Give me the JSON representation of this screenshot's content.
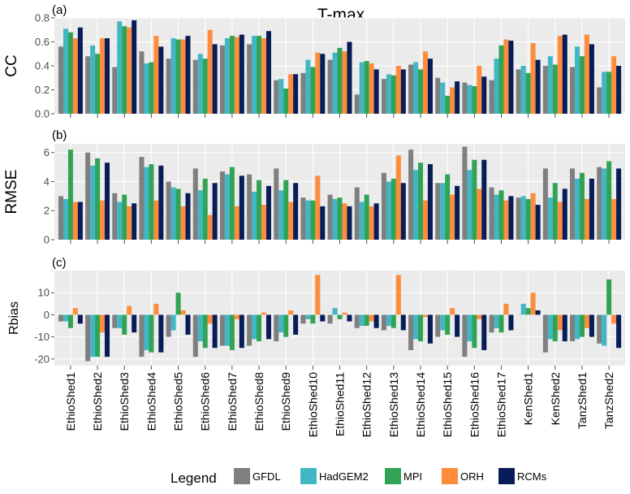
{
  "chart_data": {
    "type": "bar",
    "title": "T-max",
    "categories": [
      "EthioShed1",
      "EthioShed2",
      "EthioShed3",
      "EthioShed4",
      "EthioShed5",
      "EthioShed6",
      "EthioShed7",
      "EthioShed8",
      "EthioShed9",
      "EthioShed10",
      "EthioShed11",
      "EthioShed12",
      "EthioShed13",
      "EthioShed14",
      "EthioShed15",
      "EthioShed16",
      "EthioShed17",
      "KenShed1",
      "KenShed2",
      "TanzShed1",
      "TanzShed2"
    ],
    "series_names": [
      "GFDL",
      "HadGEM2",
      "MPI",
      "ORH",
      "RCMs"
    ],
    "colors": {
      "GFDL": "#7f7f7f",
      "HadGEM2": "#41b6c4",
      "MPI": "#31a354",
      "ORH": "#fd8d3c",
      "RCMs": "#081d58"
    },
    "legend": {
      "title": "Legend",
      "position": "bottom"
    },
    "panels": [
      {
        "tag": "(a)",
        "ylabel": "CC",
        "ylim": [
          0,
          0.8
        ],
        "yticks": [
          0.0,
          0.2,
          0.4,
          0.6,
          0.8
        ],
        "ytick_labels": [
          "0.0",
          "0.2",
          "0.4",
          "0.6",
          "0.8"
        ],
        "series": [
          {
            "name": "GFDL",
            "values": [
              0.56,
              0.48,
              0.39,
              0.52,
              0.46,
              0.45,
              0.57,
              0.58,
              0.28,
              0.34,
              0.45,
              0.16,
              0.29,
              0.41,
              0.3,
              0.26,
              0.28,
              0.37,
              0.4,
              0.39,
              0.22
            ]
          },
          {
            "name": "HadGEM2",
            "values": [
              0.71,
              0.57,
              0.77,
              0.42,
              0.63,
              0.5,
              0.63,
              0.65,
              0.29,
              0.45,
              0.51,
              0.43,
              0.33,
              0.43,
              0.26,
              0.24,
              0.46,
              0.4,
              0.48,
              0.56,
              0.35
            ]
          },
          {
            "name": "MPI",
            "values": [
              0.68,
              0.5,
              0.73,
              0.43,
              0.62,
              0.46,
              0.65,
              0.65,
              0.21,
              0.39,
              0.55,
              0.44,
              0.32,
              0.37,
              0.15,
              0.23,
              0.57,
              0.34,
              0.41,
              0.48,
              0.35
            ]
          },
          {
            "name": "ORH",
            "values": [
              0.63,
              0.63,
              0.72,
              0.65,
              0.62,
              0.7,
              0.64,
              0.63,
              0.33,
              0.51,
              0.52,
              0.42,
              0.4,
              0.52,
              0.22,
              0.4,
              0.62,
              0.59,
              0.65,
              0.66,
              0.48
            ]
          },
          {
            "name": "RCMs",
            "values": [
              0.72,
              0.63,
              0.78,
              0.56,
              0.65,
              0.58,
              0.66,
              0.69,
              0.33,
              0.5,
              0.6,
              0.37,
              0.37,
              0.46,
              0.27,
              0.31,
              0.61,
              0.45,
              0.66,
              0.58,
              0.4
            ]
          }
        ]
      },
      {
        "tag": "(b)",
        "ylabel": "RMSE",
        "ylim": [
          0,
          6.6
        ],
        "yticks": [
          0,
          2,
          4,
          6
        ],
        "ytick_labels": [
          "0",
          "2",
          "4",
          "6"
        ],
        "series": [
          {
            "name": "GFDL",
            "values": [
              3.0,
              6.0,
              3.2,
              5.7,
              4.0,
              4.9,
              4.7,
              4.5,
              4.9,
              2.9,
              3.1,
              3.6,
              4.6,
              6.2,
              3.9,
              6.4,
              3.6,
              2.9,
              4.9,
              4.9,
              5.0
            ]
          },
          {
            "name": "HadGEM2",
            "values": [
              2.8,
              5.1,
              2.6,
              5.0,
              3.6,
              3.4,
              4.5,
              3.3,
              3.4,
              2.7,
              2.8,
              2.6,
              4.0,
              4.8,
              3.9,
              4.8,
              3.1,
              3.0,
              2.9,
              4.2,
              4.9
            ]
          },
          {
            "name": "MPI",
            "values": [
              6.2,
              5.6,
              3.1,
              5.2,
              3.5,
              4.2,
              5.0,
              4.1,
              4.1,
              2.7,
              2.9,
              3.1,
              4.2,
              5.3,
              4.5,
              5.5,
              3.4,
              2.8,
              3.9,
              4.6,
              5.4
            ]
          },
          {
            "name": "ORH",
            "values": [
              2.6,
              2.7,
              2.3,
              2.7,
              2.3,
              1.7,
              2.3,
              2.4,
              2.6,
              4.4,
              2.5,
              2.3,
              5.8,
              2.7,
              3.1,
              3.5,
              2.7,
              3.2,
              2.6,
              2.8,
              2.8
            ]
          },
          {
            "name": "RCMs",
            "values": [
              2.6,
              5.3,
              2.5,
              5.1,
              3.2,
              3.9,
              4.4,
              3.7,
              3.9,
              2.3,
              2.3,
              2.5,
              3.9,
              5.2,
              3.7,
              5.5,
              3.0,
              2.4,
              3.5,
              4.2,
              4.9
            ]
          }
        ]
      },
      {
        "tag": "(c)",
        "ylabel": "Rbias",
        "ylim": [
          -23,
          20
        ],
        "yticks": [
          -20,
          -10,
          0,
          10
        ],
        "ytick_labels": [
          "-20",
          "-10",
          "0",
          "10"
        ],
        "series": [
          {
            "name": "GFDL",
            "values": [
              -3,
              -21,
              -6,
              -19,
              -10,
              -19,
              -14,
              -14,
              -12,
              -4,
              -4,
              -6,
              -7,
              -16,
              -10,
              -19,
              -8,
              0,
              -17,
              -12,
              -13
            ]
          },
          {
            "name": "HadGEM2",
            "values": [
              -3,
              -19,
              -6,
              -16,
              -7,
              -12,
              -14,
              -11,
              -8,
              -2,
              3,
              -5,
              -5,
              -11,
              -7,
              -12,
              -6,
              5,
              -11,
              -11,
              -14
            ]
          },
          {
            "name": "MPI",
            "values": [
              -6,
              -19,
              -9,
              -17,
              10,
              -15,
              -16,
              -12,
              -10,
              -4,
              -2,
              -5,
              -6,
              -12,
              -9,
              -15,
              -8,
              3,
              -12,
              -10,
              16
            ]
          },
          {
            "name": "ORH",
            "values": [
              3,
              -8,
              4,
              5,
              2,
              -4,
              -2,
              1,
              2,
              18,
              1,
              -3,
              18,
              -1,
              3,
              -2,
              5,
              10,
              -7,
              -6,
              -4
            ]
          },
          {
            "name": "RCMs",
            "values": [
              -4,
              -19,
              -8,
              -17,
              -9,
              -15,
              -15,
              -11,
              -9,
              -3,
              -3,
              -6,
              -7,
              -13,
              -10,
              -16,
              -7,
              2,
              -12,
              -10,
              -15
            ]
          }
        ]
      }
    ]
  }
}
